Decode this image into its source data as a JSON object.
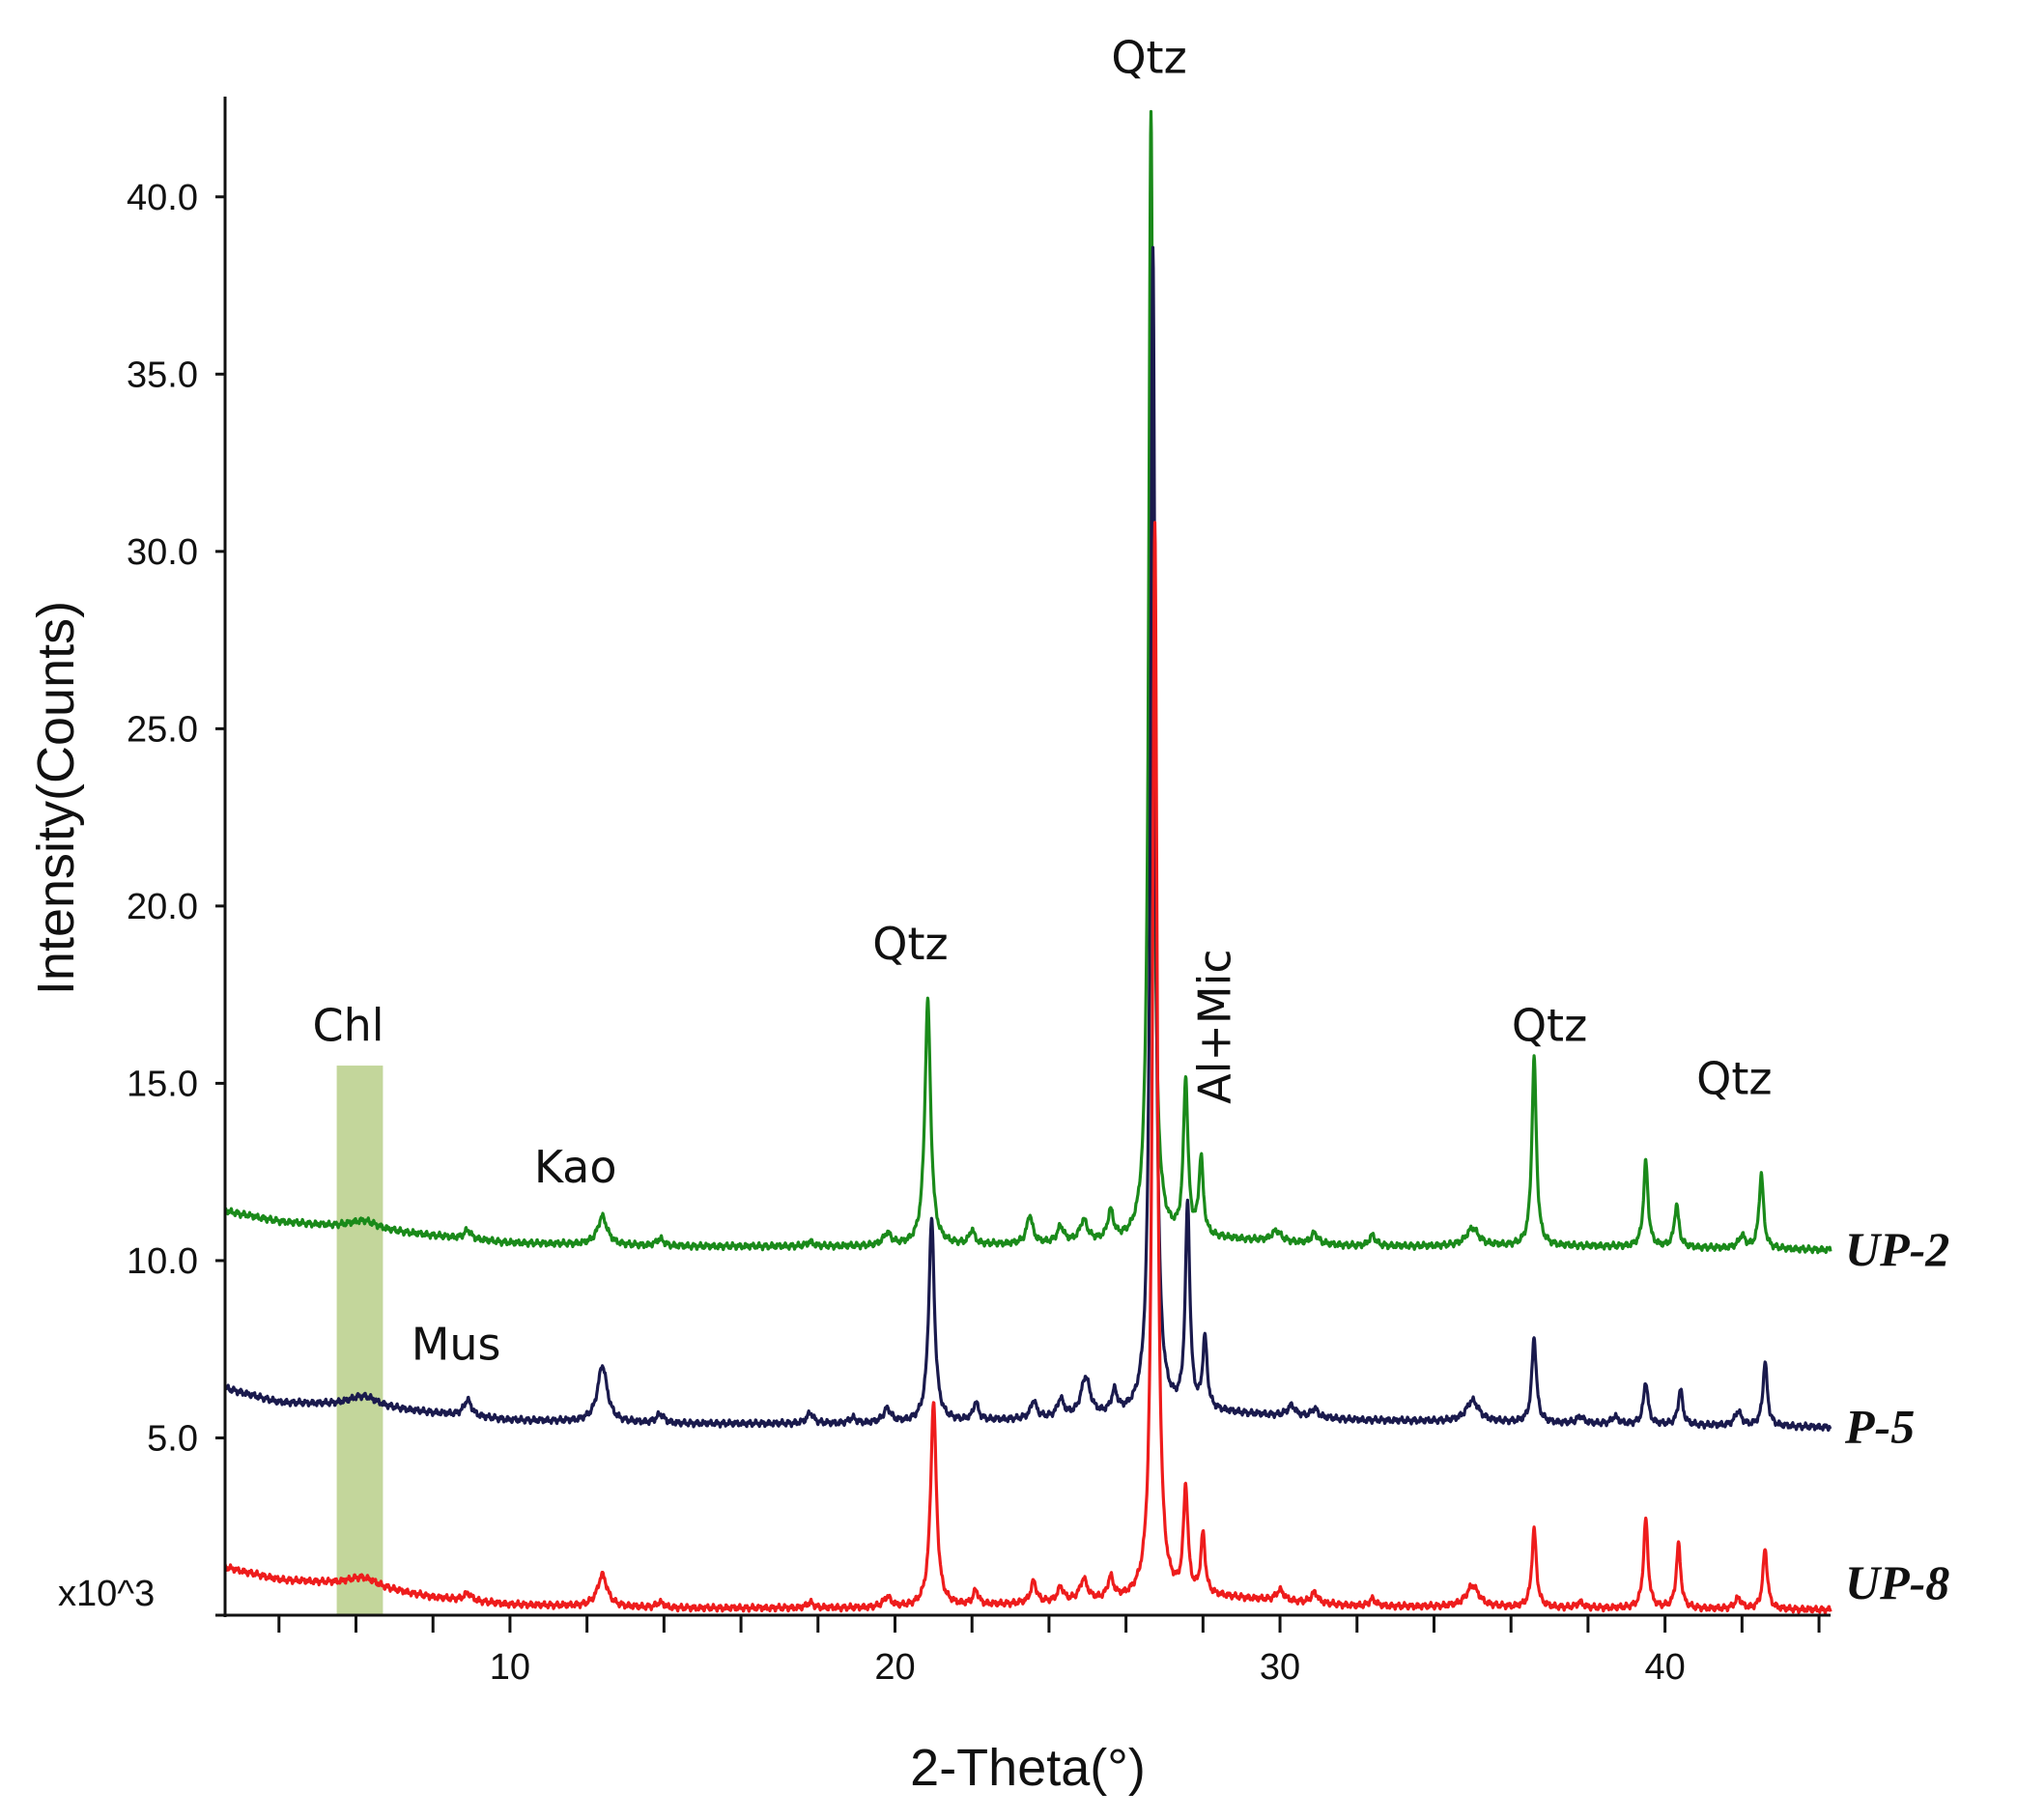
{
  "chart_data": {
    "type": "line",
    "title": "",
    "xlabel": "2-Theta(°)",
    "ylabel": "Intensity(Counts)",
    "y_scale_note": "x10^3",
    "xlim": [
      2.6,
      44.3
    ],
    "ylim": [
      0,
      42.5
    ],
    "x_ticks": [
      10,
      20,
      30,
      40
    ],
    "x_minor_ticks": [
      4,
      6,
      8,
      12,
      14,
      16,
      18,
      22,
      24,
      26,
      28,
      32,
      34,
      36,
      38,
      42,
      44
    ],
    "y_ticks": [
      {
        "value": 5,
        "label": "5.0"
      },
      {
        "value": 10,
        "label": "10.0"
      },
      {
        "value": 15,
        "label": "15.0"
      },
      {
        "value": 20,
        "label": "20.0"
      },
      {
        "value": 25,
        "label": "25.0"
      },
      {
        "value": 30,
        "label": "30.0"
      },
      {
        "value": 35,
        "label": "35.0"
      },
      {
        "value": 40,
        "label": "40.0"
      }
    ],
    "highlight_band": {
      "x_start": 5.5,
      "x_end": 6.7,
      "y_top": 15.5,
      "color": "#c3d69b",
      "label": "Chl"
    },
    "series": [
      {
        "name": "UP-2",
        "color": "#1a8a1a",
        "baseline_points": [
          [
            2.6,
            11.4
          ],
          [
            4,
            11.1
          ],
          [
            6,
            10.9
          ],
          [
            8,
            10.7
          ],
          [
            10,
            10.5
          ],
          [
            14,
            10.4
          ],
          [
            20,
            10.4
          ],
          [
            26,
            10.5
          ],
          [
            28.5,
            10.6
          ],
          [
            32,
            10.4
          ],
          [
            38,
            10.4
          ],
          [
            44.3,
            10.3
          ]
        ],
        "peaks": [
          {
            "x": 6.2,
            "h": 0.25,
            "w": 0.45
          },
          {
            "x": 8.9,
            "h": 0.25,
            "w": 0.1
          },
          {
            "x": 12.4,
            "h": 0.8,
            "w": 0.15
          },
          {
            "x": 13.9,
            "h": 0.2,
            "w": 0.12
          },
          {
            "x": 17.8,
            "h": 0.12,
            "w": 0.1
          },
          {
            "x": 19.8,
            "h": 0.35,
            "w": 0.12
          },
          {
            "x": 20.85,
            "h": 6.9,
            "w": 0.09
          },
          {
            "x": 22.0,
            "h": 0.4,
            "w": 0.08
          },
          {
            "x": 23.5,
            "h": 0.8,
            "w": 0.09
          },
          {
            "x": 24.3,
            "h": 0.45,
            "w": 0.1
          },
          {
            "x": 24.9,
            "h": 0.6,
            "w": 0.12
          },
          {
            "x": 25.6,
            "h": 0.8,
            "w": 0.09
          },
          {
            "x": 26.65,
            "h": 31.8,
            "w": 0.07
          },
          {
            "x": 27.55,
            "h": 4.4,
            "w": 0.07
          },
          {
            "x": 27.95,
            "h": 2.2,
            "w": 0.07
          },
          {
            "x": 29.9,
            "h": 0.3,
            "w": 0.15
          },
          {
            "x": 30.9,
            "h": 0.3,
            "w": 0.1
          },
          {
            "x": 32.4,
            "h": 0.3,
            "w": 0.1
          },
          {
            "x": 35.0,
            "h": 0.5,
            "w": 0.2
          },
          {
            "x": 36.6,
            "h": 5.3,
            "w": 0.07
          },
          {
            "x": 39.5,
            "h": 2.4,
            "w": 0.07
          },
          {
            "x": 40.3,
            "h": 1.2,
            "w": 0.07
          },
          {
            "x": 42.0,
            "h": 0.35,
            "w": 0.1
          },
          {
            "x": 42.5,
            "h": 2.1,
            "w": 0.07
          }
        ]
      },
      {
        "name": "P-5",
        "color": "#1a1a4d",
        "baseline_points": [
          [
            2.6,
            6.4
          ],
          [
            4,
            6.0
          ],
          [
            6,
            5.9
          ],
          [
            8,
            5.7
          ],
          [
            10,
            5.5
          ],
          [
            14,
            5.4
          ],
          [
            20,
            5.4
          ],
          [
            26,
            5.6
          ],
          [
            28.5,
            5.7
          ],
          [
            32,
            5.5
          ],
          [
            38,
            5.4
          ],
          [
            44.3,
            5.3
          ]
        ],
        "peaks": [
          {
            "x": 6.2,
            "h": 0.3,
            "w": 0.45
          },
          {
            "x": 8.9,
            "h": 0.45,
            "w": 0.12
          },
          {
            "x": 12.4,
            "h": 1.6,
            "w": 0.15
          },
          {
            "x": 13.9,
            "h": 0.25,
            "w": 0.12
          },
          {
            "x": 17.8,
            "h": 0.3,
            "w": 0.1
          },
          {
            "x": 18.9,
            "h": 0.15,
            "w": 0.1
          },
          {
            "x": 19.8,
            "h": 0.4,
            "w": 0.12
          },
          {
            "x": 20.95,
            "h": 5.7,
            "w": 0.09
          },
          {
            "x": 22.1,
            "h": 0.5,
            "w": 0.08
          },
          {
            "x": 23.6,
            "h": 0.5,
            "w": 0.09
          },
          {
            "x": 24.3,
            "h": 0.5,
            "w": 0.1
          },
          {
            "x": 24.95,
            "h": 1.1,
            "w": 0.14
          },
          {
            "x": 25.7,
            "h": 0.6,
            "w": 0.09
          },
          {
            "x": 26.7,
            "h": 32.9,
            "w": 0.07
          },
          {
            "x": 27.6,
            "h": 5.8,
            "w": 0.07
          },
          {
            "x": 28.05,
            "h": 2.0,
            "w": 0.07
          },
          {
            "x": 30.3,
            "h": 0.3,
            "w": 0.12
          },
          {
            "x": 30.9,
            "h": 0.25,
            "w": 0.1
          },
          {
            "x": 35.0,
            "h": 0.6,
            "w": 0.2
          },
          {
            "x": 36.6,
            "h": 2.4,
            "w": 0.07
          },
          {
            "x": 37.8,
            "h": 0.2,
            "w": 0.1
          },
          {
            "x": 38.7,
            "h": 0.2,
            "w": 0.1
          },
          {
            "x": 39.5,
            "h": 1.2,
            "w": 0.07
          },
          {
            "x": 40.4,
            "h": 1.0,
            "w": 0.07
          },
          {
            "x": 41.9,
            "h": 0.4,
            "w": 0.1
          },
          {
            "x": 42.6,
            "h": 1.8,
            "w": 0.07
          }
        ]
      },
      {
        "name": "UP-8",
        "color": "#ee1c1c",
        "baseline_points": [
          [
            2.6,
            1.35
          ],
          [
            4,
            1.0
          ],
          [
            6,
            0.85
          ],
          [
            8,
            0.5
          ],
          [
            10,
            0.3
          ],
          [
            14,
            0.2
          ],
          [
            20,
            0.2
          ],
          [
            26,
            0.4
          ],
          [
            28.5,
            0.5
          ],
          [
            32,
            0.25
          ],
          [
            38,
            0.2
          ],
          [
            44.3,
            0.15
          ]
        ],
        "peaks": [
          {
            "x": 6.2,
            "h": 0.25,
            "w": 0.45
          },
          {
            "x": 8.9,
            "h": 0.2,
            "w": 0.12
          },
          {
            "x": 12.4,
            "h": 0.9,
            "w": 0.15
          },
          {
            "x": 13.9,
            "h": 0.15,
            "w": 0.12
          },
          {
            "x": 17.8,
            "h": 0.15,
            "w": 0.1
          },
          {
            "x": 19.8,
            "h": 0.3,
            "w": 0.12
          },
          {
            "x": 21.0,
            "h": 5.8,
            "w": 0.09
          },
          {
            "x": 22.1,
            "h": 0.4,
            "w": 0.08
          },
          {
            "x": 23.6,
            "h": 0.6,
            "w": 0.09
          },
          {
            "x": 24.3,
            "h": 0.4,
            "w": 0.1
          },
          {
            "x": 24.9,
            "h": 0.6,
            "w": 0.12
          },
          {
            "x": 25.6,
            "h": 0.6,
            "w": 0.09
          },
          {
            "x": 26.75,
            "h": 30.4,
            "w": 0.07
          },
          {
            "x": 27.55,
            "h": 3.0,
            "w": 0.07
          },
          {
            "x": 28.0,
            "h": 1.7,
            "w": 0.07
          },
          {
            "x": 30.0,
            "h": 0.3,
            "w": 0.12
          },
          {
            "x": 30.9,
            "h": 0.3,
            "w": 0.1
          },
          {
            "x": 32.4,
            "h": 0.2,
            "w": 0.1
          },
          {
            "x": 35.0,
            "h": 0.6,
            "w": 0.2
          },
          {
            "x": 36.6,
            "h": 2.2,
            "w": 0.07
          },
          {
            "x": 37.8,
            "h": 0.15,
            "w": 0.1
          },
          {
            "x": 39.5,
            "h": 2.5,
            "w": 0.07
          },
          {
            "x": 40.35,
            "h": 1.8,
            "w": 0.07
          },
          {
            "x": 41.9,
            "h": 0.3,
            "w": 0.1
          },
          {
            "x": 42.6,
            "h": 1.7,
            "w": 0.07
          }
        ]
      }
    ],
    "annotations": [
      {
        "text": "Qtz",
        "x": 26.6,
        "y": 43.5,
        "rotate": false
      },
      {
        "text": "Qtz",
        "x": 20.4,
        "y": 18.5,
        "rotate": false
      },
      {
        "text": "Qtz",
        "x": 37.0,
        "y": 16.2,
        "rotate": false
      },
      {
        "text": "Qtz",
        "x": 41.8,
        "y": 14.7,
        "rotate": false
      },
      {
        "text": "Chl",
        "x": 5.8,
        "y": 16.2,
        "rotate": false
      },
      {
        "text": "Kao",
        "x": 11.7,
        "y": 12.2,
        "rotate": false
      },
      {
        "text": "Mus",
        "x": 8.6,
        "y": 7.2,
        "rotate": false
      },
      {
        "text": "Al+Mic",
        "x": 28.3,
        "y": 20.0,
        "rotate": true
      }
    ],
    "series_labels": [
      {
        "text": "UP-2",
        "y": 10.3
      },
      {
        "text": "P-5",
        "y": 5.3
      },
      {
        "text": "UP-8",
        "y": 0.9
      }
    ]
  }
}
